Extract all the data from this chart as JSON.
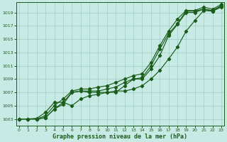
{
  "xlabel": "Graphe pression niveau de la mer (hPa)",
  "ylim": [
    1002.0,
    1020.5
  ],
  "xlim": [
    -0.3,
    23.3
  ],
  "yticks": [
    1003,
    1005,
    1007,
    1009,
    1011,
    1013,
    1015,
    1017,
    1019
  ],
  "xticks": [
    0,
    1,
    2,
    3,
    4,
    5,
    6,
    7,
    8,
    9,
    10,
    11,
    12,
    13,
    14,
    15,
    16,
    17,
    18,
    19,
    20,
    21,
    22,
    23
  ],
  "bg_color": "#c8eae4",
  "grid_color": "#a0ccc4",
  "line_color": "#1a5c1a",
  "series1": [
    1003.0,
    1003.0,
    1003.0,
    1003.2,
    1004.5,
    1005.2,
    1007.0,
    1007.2,
    1007.0,
    1007.0,
    1007.0,
    1007.0,
    1008.0,
    1009.0,
    1009.0,
    1010.5,
    1012.5,
    1015.5,
    1017.2,
    1019.0,
    1019.0,
    1019.5,
    1019.2,
    1019.8
  ],
  "series2": [
    1003.0,
    1003.0,
    1003.0,
    1003.2,
    1004.5,
    1005.5,
    1007.0,
    1007.2,
    1007.2,
    1007.2,
    1007.5,
    1007.8,
    1008.5,
    1009.0,
    1009.2,
    1011.0,
    1013.5,
    1015.8,
    1017.3,
    1019.2,
    1019.2,
    1019.5,
    1019.3,
    1020.0
  ],
  "series3": [
    1003.0,
    1003.0,
    1003.0,
    1003.5,
    1005.0,
    1006.0,
    1007.2,
    1007.5,
    1007.5,
    1007.8,
    1008.0,
    1008.5,
    1009.0,
    1009.5,
    1009.8,
    1011.5,
    1014.0,
    1016.2,
    1018.0,
    1019.3,
    1019.3,
    1019.8,
    1019.5,
    1020.2
  ],
  "series4": [
    1003.0,
    1003.0,
    1003.1,
    1004.0,
    1005.5,
    1005.5,
    1005.0,
    1006.0,
    1006.5,
    1006.7,
    1007.0,
    1007.2,
    1007.2,
    1007.5,
    1008.0,
    1009.0,
    1010.3,
    1012.0,
    1013.8,
    1016.2,
    1017.8,
    1019.3,
    1019.2,
    1020.0
  ]
}
